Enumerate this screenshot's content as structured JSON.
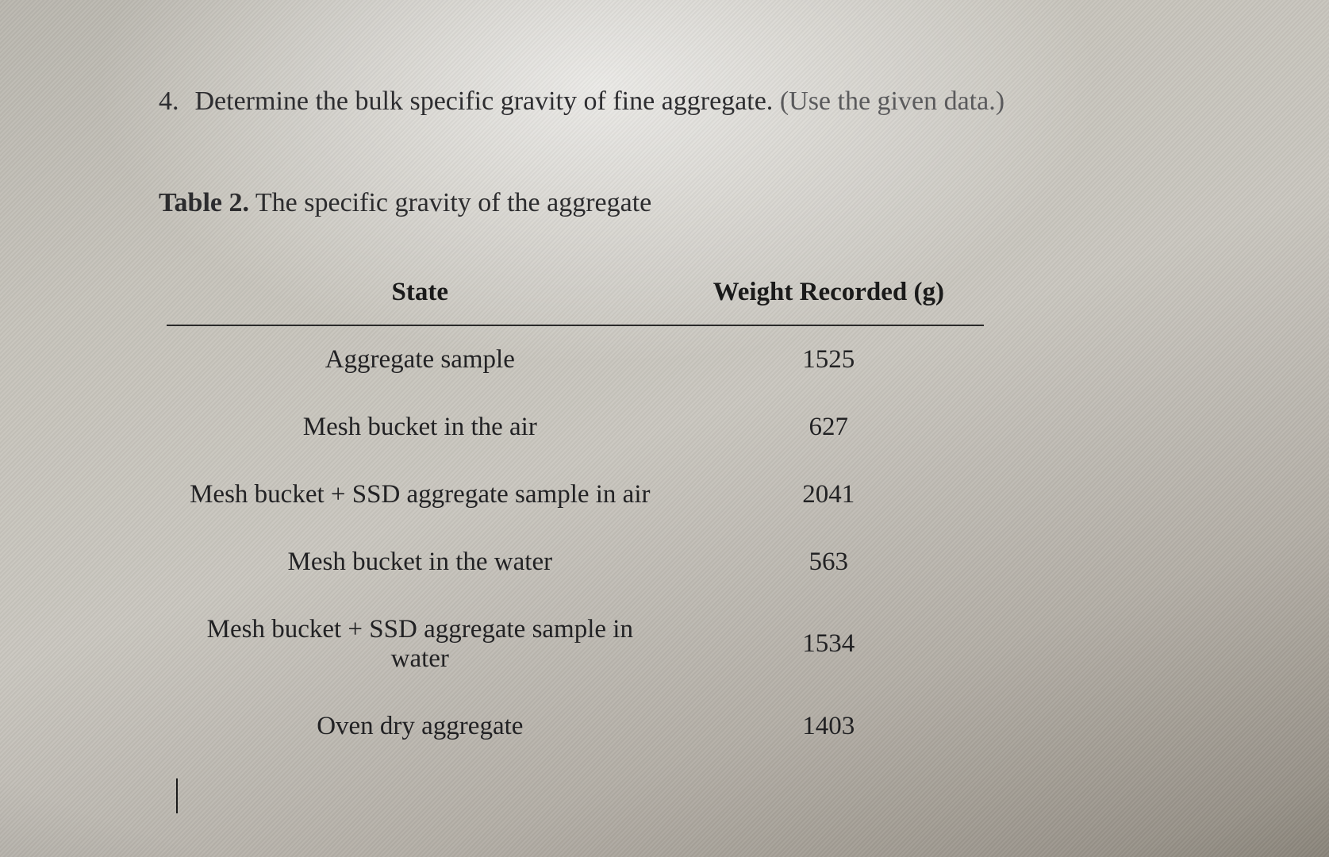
{
  "question": {
    "list_number": "4.",
    "text_main": "Determine the bulk specific gravity of fine aggregate. ",
    "text_paren": "(Use the given data.)"
  },
  "caption": {
    "label": "Table 2.",
    "text": " The specific gravity of the aggregate"
  },
  "table": {
    "headers": {
      "state": "State",
      "weight": "Weight Recorded (g)"
    },
    "rows": [
      {
        "state": "Aggregate sample",
        "weight": "1525"
      },
      {
        "state": "Mesh bucket in the air",
        "weight": "627"
      },
      {
        "state": "Mesh bucket + SSD aggregate sample in air",
        "weight": "2041"
      },
      {
        "state": "Mesh bucket in the water",
        "weight": "563"
      },
      {
        "state": "Mesh bucket + SSD aggregate sample in water",
        "weight": "1534"
      },
      {
        "state": "Oven dry aggregate",
        "weight": "1403"
      }
    ],
    "style": {
      "header_border_color": "#2a2a2a",
      "font_family": "Times New Roman",
      "font_size_pt": 25,
      "col_widths_pct": [
        62,
        38
      ]
    }
  },
  "colors": {
    "text": "#1a1a1a",
    "muted_text": "#5a5a5c",
    "bg_gradient_stops": [
      "#b9b6ae",
      "#c6c3bb",
      "#c9c6bf",
      "#b3aea6",
      "#8f897f"
    ]
  }
}
